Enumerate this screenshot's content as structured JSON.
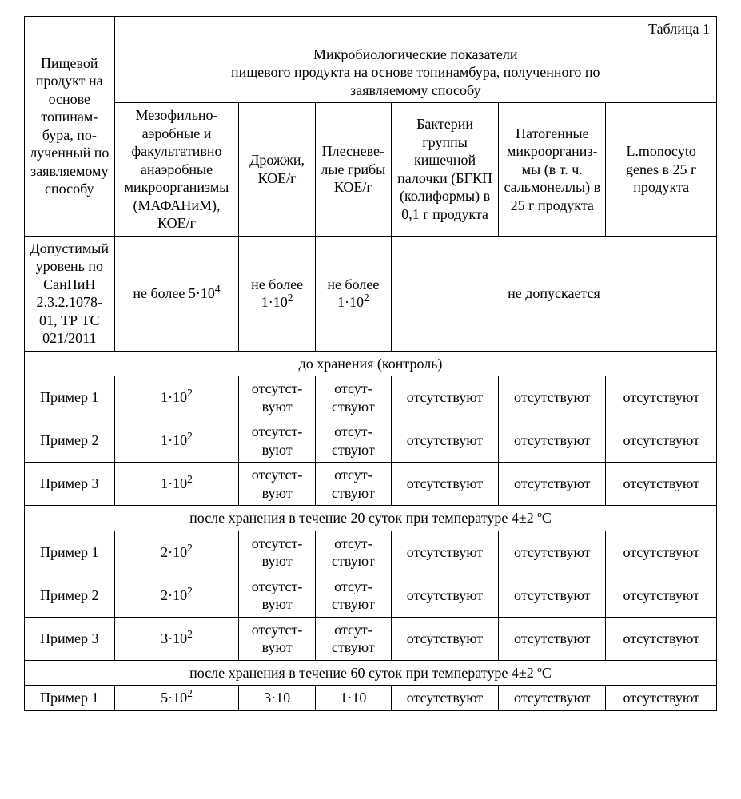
{
  "tableLabel": "Таблица 1",
  "rowHeader": "Пищевой продукт на основе топинам­бура, по­лученный по заявляе­мому способу",
  "mainHeader": "Микробиологические показатели\nпищевого продукта на основе топинамбура, полученного по\nзаявляемому способу",
  "cols": {
    "c1": "Мезофильно-аэробные и факультатив­но анаэроб­ные микроор­ганизмы (МАФАНиМ), КОЕ/г",
    "c2": "Дрож­жи, КОЕ/г",
    "c3": "Плес­неве­лые грибы КОЕ/г",
    "c4": "Бактерии группы кишечной палочки (БГКП (ко­лиформы) в 0,1 г про­дукта",
    "c5": "Патоген­ные мик­роорганиз­мы (в т. ч. сальмонел­лы) в 25 г продукта",
    "c6": "L.monocyto genes в 25 г продукта"
  },
  "limitRow": {
    "label": "Допусти­мый уро­вень по СанПиН 2.3.2.1078-01, ТР ТС 021/2011",
    "c1_html": "не более 5·10<sup>4</sup>",
    "c2_html": "не более 1·10<sup>2</sup>",
    "c3_html": "не бо­лее 1·10<sup>2</sup>",
    "merged": "не допускается"
  },
  "section1": "до хранения (контроль)",
  "section2": "после хранения в течение 20 суток при температуре 4±2 ºС",
  "section3": "после хранения в течение 60 суток при температуре 4±2 ºС",
  "ex1": "Пример 1",
  "ex2": "Пример 2",
  "ex3": "Пример 3",
  "vals": {
    "s1r1_html": "1·10<sup>2</sup>",
    "s1r2_html": "1·10<sup>2</sup>",
    "s1r3_html": "1·10<sup>2</sup>",
    "s2r1_html": "2·10<sup>2</sup>",
    "s2r2_html": "2·10<sup>2</sup>",
    "s2r3_html": "3·10<sup>2</sup>",
    "s3r1_html": "5·10<sup>2</sup>",
    "s3r1c2": "3·10",
    "s3r1c3": "1·10"
  },
  "absent1": "отсутст­вуют",
  "absent2": "отсут­ствуют",
  "absent3": "отсутству­ют"
}
